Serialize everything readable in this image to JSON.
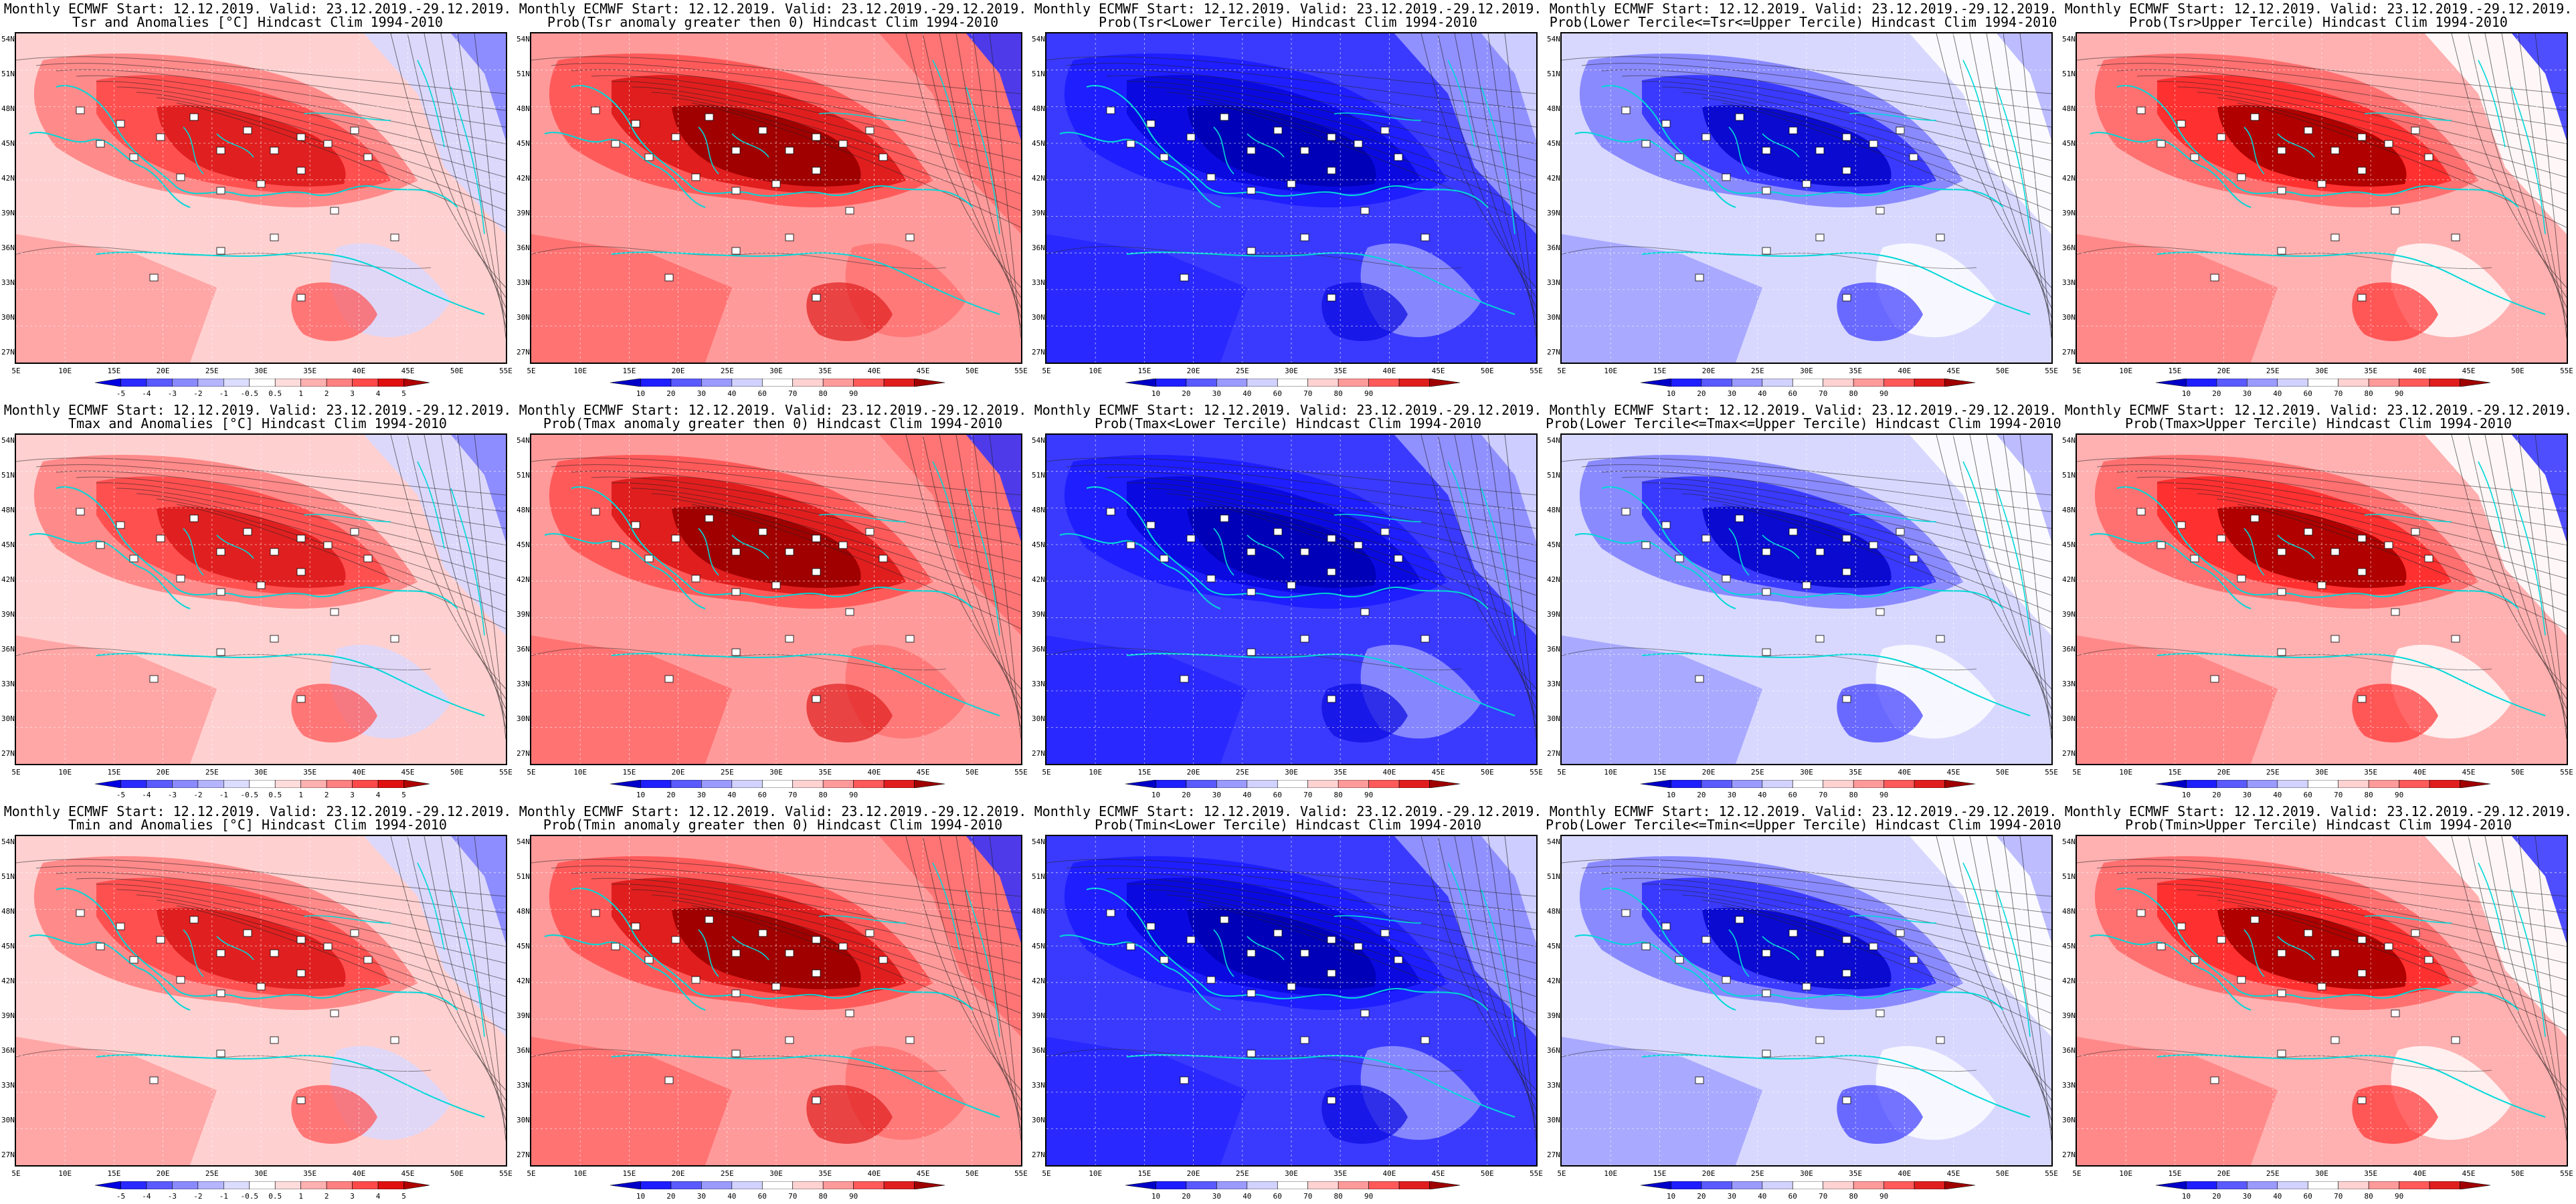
{
  "lat_labels": [
    "54N",
    "51N",
    "48N",
    "45N",
    "42N",
    "39N",
    "36N",
    "33N",
    "30N",
    "27N"
  ],
  "lon_labels": [
    "5E",
    "10E",
    "15E",
    "20E",
    "25E",
    "30E",
    "35E",
    "40E",
    "45E",
    "50E",
    "55E"
  ],
  "anomaly_colorbar": {
    "ticks": [
      "-5",
      "-4",
      "-3",
      "-2",
      "-1",
      "-0.5",
      "0.5",
      "1",
      "2",
      "3",
      "4",
      "5"
    ],
    "colors": [
      "#0000e0",
      "#2a2aff",
      "#5a5aff",
      "#8a8aff",
      "#b4b4ff",
      "#dcdcff",
      "#ffffff",
      "#ffdcdc",
      "#ffb0b0",
      "#ff8080",
      "#ff4a4a",
      "#e01010",
      "#b00000"
    ]
  },
  "prob_colorbar": {
    "ticks": [
      "10",
      "20",
      "30",
      "40",
      "60",
      "70",
      "80",
      "90"
    ],
    "colors": [
      "#0000c8",
      "#1e1eff",
      "#5a5aff",
      "#9a9aff",
      "#d2d2ff",
      "#ffffff",
      "#ffd2d2",
      "#ff9a9a",
      "#ff5a5a",
      "#e01e1e",
      "#a00000"
    ]
  },
  "panels": [
    {
      "title1": "Monthly ECMWF Start: 12.12.2019. Valid: 23.12.2019.-29.12.2019.",
      "title2": "Tsr and Anomalies [°C] Hindcast Clim 1994-2010",
      "kind": "anomaly"
    },
    {
      "title1": "Monthly ECMWF Start: 12.12.2019. Valid: 23.12.2019.-29.12.2019.",
      "title2": "Prob(Tsr anomaly greater then 0) Hindcast Clim 1994-2010",
      "kind": "prob_red"
    },
    {
      "title1": "Monthly ECMWF Start: 12.12.2019. Valid: 23.12.2019.-29.12.2019.",
      "title2": "Prob(Tsr<Lower Tercile) Hindcast Clim 1994-2010",
      "kind": "prob_blue"
    },
    {
      "title1": "Monthly ECMWF Start: 12.12.2019. Valid: 23.12.2019.-29.12.2019.",
      "title2": "Prob(Lower Tercile<=Tsr<=Upper Tercile) Hindcast Clim 1994-2010",
      "kind": "prob_mid"
    },
    {
      "title1": "Monthly ECMWF Start: 12.12.2019. Valid: 23.12.2019.-29.12.2019.",
      "title2": "Prob(Tsr>Upper Tercile) Hindcast Clim 1994-2010",
      "kind": "prob_upper"
    },
    {
      "title1": "Monthly ECMWF Start: 12.12.2019. Valid: 23.12.2019.-29.12.2019.",
      "title2": "Tmax and Anomalies [°C] Hindcast Clim 1994-2010",
      "kind": "anomaly"
    },
    {
      "title1": "Monthly ECMWF Start: 12.12.2019. Valid: 23.12.2019.-29.12.2019.",
      "title2": "Prob(Tmax anomaly greater then 0) Hindcast Clim 1994-2010",
      "kind": "prob_red"
    },
    {
      "title1": "Monthly ECMWF Start: 12.12.2019. Valid: 23.12.2019.-29.12.2019.",
      "title2": "Prob(Tmax<Lower Tercile) Hindcast Clim 1994-2010",
      "kind": "prob_blue"
    },
    {
      "title1": "Monthly ECMWF Start: 12.12.2019. Valid: 23.12.2019.-29.12.2019.",
      "title2": "Prob(Lower Tercile<=Tmax<=Upper Tercile) Hindcast Clim 1994-2010",
      "kind": "prob_mid"
    },
    {
      "title1": "Monthly ECMWF Start: 12.12.2019. Valid: 23.12.2019.-29.12.2019.",
      "title2": "Prob(Tmax>Upper Tercile) Hindcast Clim 1994-2010",
      "kind": "prob_upper"
    },
    {
      "title1": "Monthly ECMWF Start: 12.12.2019. Valid: 23.12.2019.-29.12.2019.",
      "title2": "Tmin and Anomalies [°C] Hindcast Clim 1994-2010",
      "kind": "anomaly"
    },
    {
      "title1": "Monthly ECMWF Start: 12.12.2019. Valid: 23.12.2019.-29.12.2019.",
      "title2": "Prob(Tmin anomaly greater then 0) Hindcast Clim 1994-2010",
      "kind": "prob_red"
    },
    {
      "title1": "Monthly ECMWF Start: 12.12.2019. Valid: 23.12.2019.-29.12.2019.",
      "title2": "Prob(Tmin<Lower Tercile) Hindcast Clim 1994-2010",
      "kind": "prob_blue"
    },
    {
      "title1": "Monthly ECMWF Start: 12.12.2019. Valid: 23.12.2019.-29.12.2019.",
      "title2": "Prob(Lower Tercile<=Tmin<=Upper Tercile) Hindcast Clim 1994-2010",
      "kind": "prob_mid"
    },
    {
      "title1": "Monthly ECMWF Start: 12.12.2019. Valid: 23.12.2019.-29.12.2019.",
      "title2": "Prob(Tmin>Upper Tercile) Hindcast Clim 1994-2010",
      "kind": "prob_upper"
    }
  ]
}
